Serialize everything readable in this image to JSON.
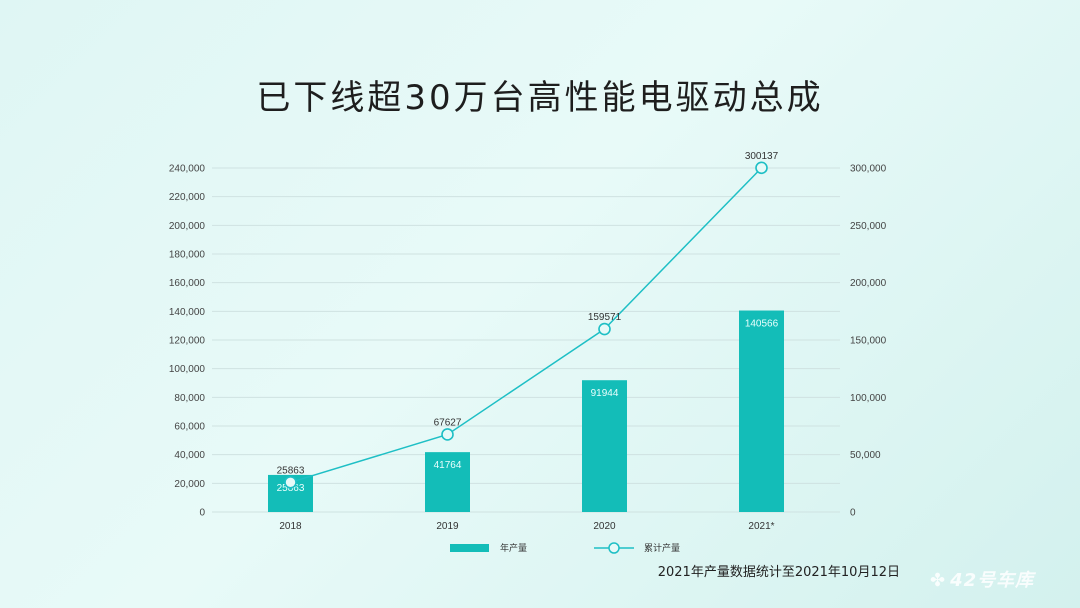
{
  "title": "已下线超30万台高性能电驱动总成",
  "footnote": "2021年产量数据统计至2021年10月12日",
  "watermark": "42号车库",
  "colors": {
    "bar": "#13bdb8",
    "line": "#1ebfc5",
    "grid": "#cfe2e1",
    "marker_fill": "#e6faf8"
  },
  "chart_data": {
    "type": "bar",
    "categories": [
      "2018",
      "2019",
      "2020",
      "2021*"
    ],
    "series": [
      {
        "name": "年产量",
        "type": "bar",
        "axis": "left",
        "values": [
          25863,
          41764,
          91944,
          140566
        ],
        "labels": [
          "25863",
          "41764",
          "91944",
          "140566"
        ]
      },
      {
        "name": "累计产量",
        "type": "line",
        "axis": "right",
        "values": [
          25863,
          67627,
          159571,
          300137
        ],
        "labels": [
          "25863",
          "67627",
          "159571",
          "300137"
        ]
      }
    ],
    "y_left": {
      "min": 0,
      "max": 240000,
      "ticks": [
        "0",
        "20,000",
        "40,000",
        "60,000",
        "80,000",
        "100,000",
        "120,000",
        "140,000",
        "160,000",
        "180,000",
        "200,000",
        "220,000",
        "240,000"
      ]
    },
    "y_right": {
      "min": 0,
      "max": 300000,
      "ticks": [
        "0",
        "50,000",
        "100,000",
        "150,000",
        "200,000",
        "250,000",
        "300,000"
      ]
    },
    "grid": true,
    "legend_position": "bottom"
  }
}
